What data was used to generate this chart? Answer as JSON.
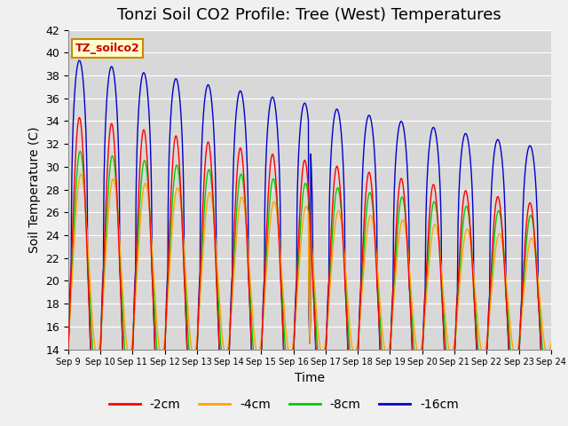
{
  "title": "Tonzi Soil CO2 Profile: Tree (West) Temperatures",
  "xlabel": "Time",
  "ylabel": "Soil Temperature (C)",
  "ylim": [
    14,
    42
  ],
  "yticks": [
    14,
    16,
    18,
    20,
    22,
    24,
    26,
    28,
    30,
    32,
    34,
    36,
    38,
    40,
    42
  ],
  "xtick_labels": [
    "Sep 9",
    "Sep 10",
    "Sep 11",
    "Sep 12",
    "Sep 13",
    "Sep 14",
    "Sep 15",
    "Sep 16",
    "Sep 17",
    "Sep 18",
    "Sep 19",
    "Sep 20",
    "Sep 21",
    "Sep 22",
    "Sep 23",
    "Sep 24"
  ],
  "colors": {
    "-2cm": "#ff0000",
    "-4cm": "#ffa500",
    "-8cm": "#00cc00",
    "-16cm": "#0000cc"
  },
  "legend_label": "TZ_soilco2",
  "legend_box_color": "#ffffcc",
  "legend_text_color": "#cc0000",
  "background_color": "#d8d8d8",
  "plot_bg_color": "#d8d8d8",
  "fig_bg_color": "#f0f0f0",
  "grid_color": "#ffffff",
  "title_fontsize": 13,
  "axis_fontsize": 10,
  "tick_fontsize": 9
}
